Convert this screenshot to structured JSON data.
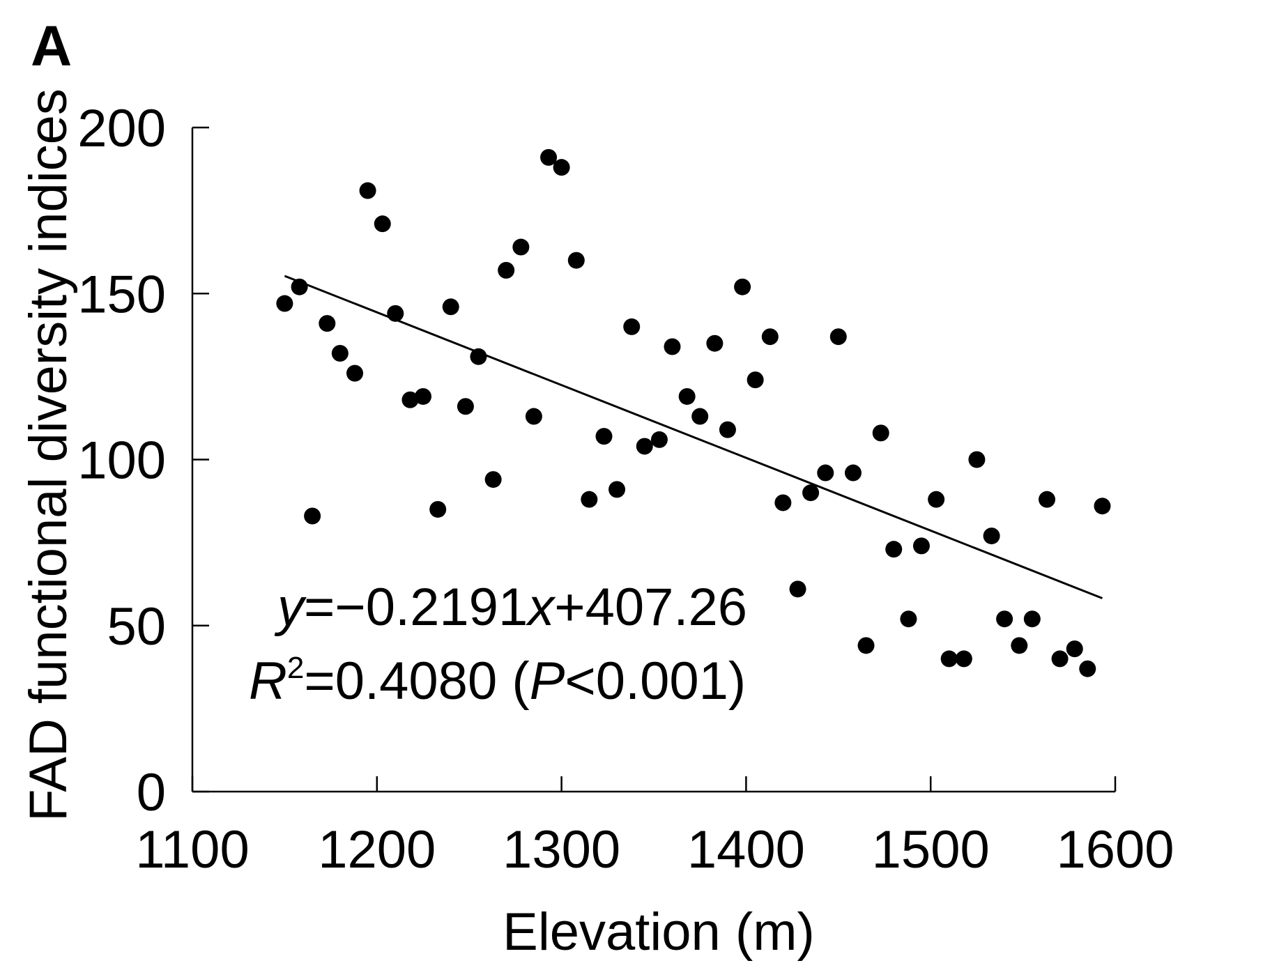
{
  "chart_data": {
    "type": "scatter",
    "panel_label": "A",
    "xlabel": "Elevation (m)",
    "ylabel": "FAD functional diversity indices",
    "xlim": [
      1100,
      1600
    ],
    "ylim": [
      0,
      200
    ],
    "x_ticks": [
      1100,
      1200,
      1300,
      1400,
      1500,
      1600
    ],
    "y_ticks": [
      0,
      50,
      100,
      150,
      200
    ],
    "grid": false,
    "points": [
      {
        "x": 1150,
        "y": 147
      },
      {
        "x": 1158,
        "y": 152
      },
      {
        "x": 1165,
        "y": 83
      },
      {
        "x": 1173,
        "y": 141
      },
      {
        "x": 1180,
        "y": 132
      },
      {
        "x": 1188,
        "y": 126
      },
      {
        "x": 1195,
        "y": 181
      },
      {
        "x": 1203,
        "y": 171
      },
      {
        "x": 1210,
        "y": 144
      },
      {
        "x": 1218,
        "y": 118
      },
      {
        "x": 1225,
        "y": 119
      },
      {
        "x": 1233,
        "y": 85
      },
      {
        "x": 1240,
        "y": 146
      },
      {
        "x": 1248,
        "y": 116
      },
      {
        "x": 1255,
        "y": 131
      },
      {
        "x": 1263,
        "y": 94
      },
      {
        "x": 1270,
        "y": 157
      },
      {
        "x": 1278,
        "y": 164
      },
      {
        "x": 1285,
        "y": 113
      },
      {
        "x": 1293,
        "y": 191
      },
      {
        "x": 1300,
        "y": 188
      },
      {
        "x": 1308,
        "y": 160
      },
      {
        "x": 1315,
        "y": 88
      },
      {
        "x": 1323,
        "y": 107
      },
      {
        "x": 1330,
        "y": 91
      },
      {
        "x": 1338,
        "y": 140
      },
      {
        "x": 1345,
        "y": 104
      },
      {
        "x": 1353,
        "y": 106
      },
      {
        "x": 1360,
        "y": 134
      },
      {
        "x": 1368,
        "y": 119
      },
      {
        "x": 1375,
        "y": 113
      },
      {
        "x": 1383,
        "y": 135
      },
      {
        "x": 1390,
        "y": 109
      },
      {
        "x": 1398,
        "y": 152
      },
      {
        "x": 1405,
        "y": 124
      },
      {
        "x": 1413,
        "y": 137
      },
      {
        "x": 1420,
        "y": 87
      },
      {
        "x": 1428,
        "y": 61
      },
      {
        "x": 1435,
        "y": 90
      },
      {
        "x": 1443,
        "y": 96
      },
      {
        "x": 1450,
        "y": 137
      },
      {
        "x": 1458,
        "y": 96
      },
      {
        "x": 1465,
        "y": 44
      },
      {
        "x": 1473,
        "y": 108
      },
      {
        "x": 1480,
        "y": 73
      },
      {
        "x": 1488,
        "y": 52
      },
      {
        "x": 1495,
        "y": 74
      },
      {
        "x": 1503,
        "y": 88
      },
      {
        "x": 1510,
        "y": 40
      },
      {
        "x": 1518,
        "y": 40
      },
      {
        "x": 1525,
        "y": 100
      },
      {
        "x": 1533,
        "y": 77
      },
      {
        "x": 1540,
        "y": 52
      },
      {
        "x": 1548,
        "y": 44
      },
      {
        "x": 1555,
        "y": 52
      },
      {
        "x": 1563,
        "y": 88
      },
      {
        "x": 1570,
        "y": 40
      },
      {
        "x": 1578,
        "y": 43
      },
      {
        "x": 1585,
        "y": 37
      },
      {
        "x": 1593,
        "y": 86
      }
    ],
    "trendline": {
      "slope": -0.2191,
      "intercept": 407.26,
      "x_range": [
        1150,
        1593
      ]
    },
    "annotation": {
      "y_var": "y",
      "eq_rest": "=−0.2191",
      "x_var": "x",
      "eq_tail": "+407.26",
      "r_var": "R",
      "r_sup": "2",
      "r_rest": "=0.4080 (",
      "p_var": "P",
      "p_rest": "<0.001)"
    }
  }
}
